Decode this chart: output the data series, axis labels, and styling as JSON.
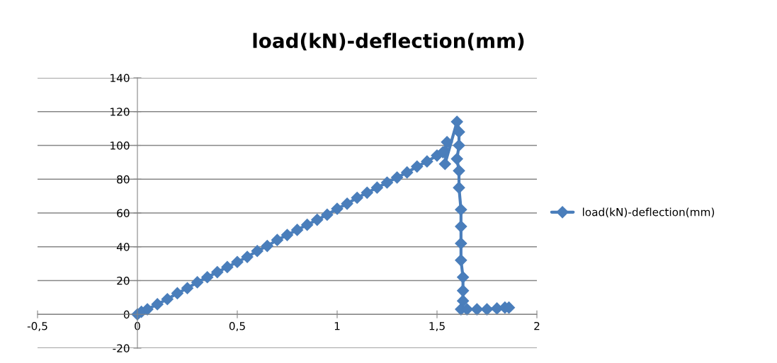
{
  "chart_data": {
    "type": "line",
    "title": "load(kN)-deflection(mm)",
    "series": [
      {
        "name": "load(kN)-deflection(mm)",
        "color": "#4a7ebb",
        "x": [
          0,
          0.02,
          0.05,
          0.1,
          0.15,
          0.2,
          0.25,
          0.3,
          0.35,
          0.4,
          0.45,
          0.5,
          0.55,
          0.6,
          0.65,
          0.7,
          0.75,
          0.8,
          0.85,
          0.9,
          0.95,
          1.0,
          1.05,
          1.1,
          1.15,
          1.2,
          1.25,
          1.3,
          1.35,
          1.4,
          1.45,
          1.5,
          1.53,
          1.55,
          1.54,
          1.6,
          1.61,
          1.61,
          1.6,
          1.61,
          1.61,
          1.62,
          1.62,
          1.62,
          1.62,
          1.63,
          1.63,
          1.63,
          1.62,
          1.65,
          1.7,
          1.75,
          1.8,
          1.84,
          1.86
        ],
        "values": [
          0,
          1.5,
          3,
          6,
          9,
          12.5,
          15.5,
          19,
          22,
          25,
          28,
          31,
          34,
          37.5,
          40.5,
          44,
          47,
          50,
          53,
          56,
          59,
          62.5,
          65.5,
          69,
          72,
          75,
          78,
          81,
          84,
          87.5,
          90.5,
          94,
          96,
          102,
          89,
          114,
          108,
          100,
          92,
          85,
          75,
          62,
          52,
          42,
          32,
          22,
          14,
          8,
          3,
          3,
          3,
          3,
          3.5,
          4,
          4
        ]
      }
    ],
    "xlim": [
      -0.5,
      2
    ],
    "xticks": [
      {
        "value": -0.5,
        "label": "-0,5"
      },
      0,
      {
        "value": 0.5,
        "label": "0,5"
      },
      1,
      {
        "value": 1.5,
        "label": "1,5"
      },
      2
    ],
    "ylim": [
      -20,
      140
    ],
    "yticks": [
      -20,
      0,
      20,
      40,
      60,
      80,
      100,
      120,
      140
    ],
    "grid": "y",
    "legend": "right",
    "marker": "diamond",
    "line_style": "solid"
  }
}
